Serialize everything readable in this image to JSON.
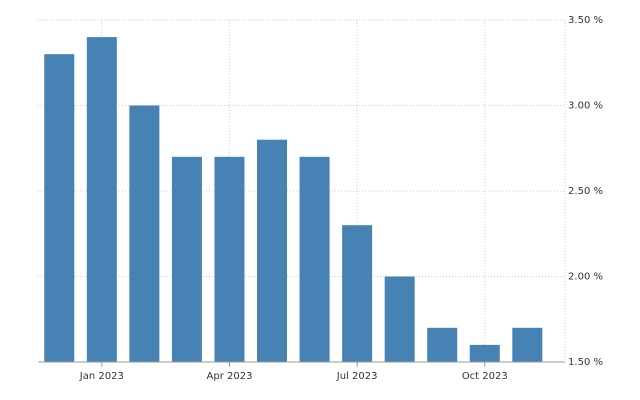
{
  "chart_data": {
    "type": "bar",
    "categories": [
      null,
      "Jan 2023",
      null,
      null,
      "Apr 2023",
      null,
      null,
      "Jul 2023",
      null,
      null,
      "Oct 2023",
      null
    ],
    "values": [
      3.3,
      3.4,
      3.0,
      2.7,
      2.7,
      2.8,
      2.7,
      2.3,
      2.0,
      1.7,
      1.6,
      1.7
    ],
    "color": "#4682b4",
    "ylim": [
      1.5,
      3.5
    ],
    "yticks": [
      {
        "value": 1.5,
        "label": "1.50 %"
      },
      {
        "value": 2.0,
        "label": "2.00 %"
      },
      {
        "value": 2.5,
        "label": "2.50 %"
      },
      {
        "value": 3.0,
        "label": "3.00 %"
      },
      {
        "value": 3.5,
        "label": "3.50 %"
      }
    ],
    "grid": true
  }
}
